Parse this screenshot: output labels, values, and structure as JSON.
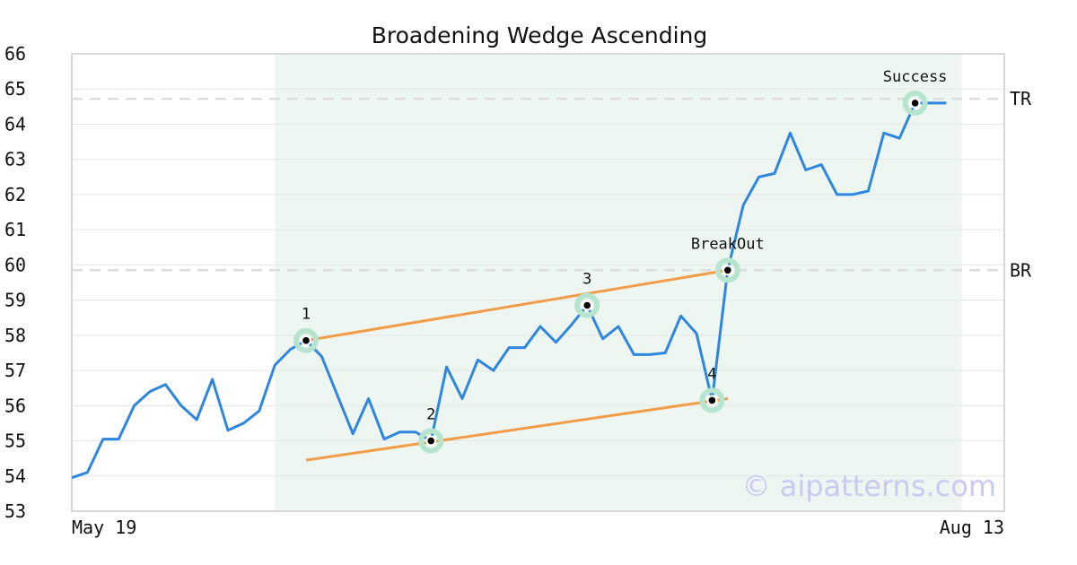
{
  "chart_data": {
    "type": "line",
    "title": "Broadening Wedge Ascending",
    "xlabel": "",
    "ylabel": "",
    "ylim": [
      53,
      66
    ],
    "yticks": [
      53,
      54,
      55,
      56,
      57,
      58,
      59,
      60,
      61,
      62,
      63,
      64,
      65,
      66
    ],
    "x_tick_labels": [
      "May 19",
      "Aug 13"
    ],
    "grid": true,
    "pattern_region": {
      "start_index": 13,
      "end_index": 57,
      "color": "#eef6f2"
    },
    "series": [
      {
        "color": "#2e86de",
        "values": [
          53.95,
          54.1,
          55.05,
          55.05,
          56.0,
          56.4,
          56.6,
          56.0,
          55.6,
          56.75,
          55.3,
          55.5,
          55.85,
          57.15,
          57.6,
          57.85,
          57.4,
          56.3,
          55.2,
          56.2,
          55.05,
          55.25,
          55.25,
          55.0,
          57.1,
          56.2,
          57.3,
          57.0,
          57.65,
          57.65,
          58.25,
          57.8,
          58.3,
          58.85,
          57.9,
          58.25,
          57.45,
          57.45,
          57.5,
          58.55,
          58.05,
          56.15,
          59.85,
          61.7,
          62.5,
          62.6,
          63.75,
          62.7,
          62.85,
          62.0,
          62.0,
          62.1,
          63.75,
          63.6,
          64.6,
          64.6,
          64.6
        ]
      }
    ],
    "trendlines": [
      {
        "color": "#f39c48",
        "from": {
          "index": 15,
          "value": 57.85
        },
        "to": {
          "index": 42,
          "value": 59.85
        }
      },
      {
        "color": "#f39c48",
        "from": {
          "index": 15,
          "value": 54.45
        },
        "to": {
          "index": 42,
          "value": 56.2
        }
      }
    ],
    "levels": [
      {
        "label": "TR",
        "value": 64.72
      },
      {
        "label": "BR",
        "value": 59.85
      }
    ],
    "points": [
      {
        "label": "1",
        "index": 15,
        "value": 57.85
      },
      {
        "label": "2",
        "index": 23,
        "value": 55.0
      },
      {
        "label": "3",
        "index": 33,
        "value": 58.85
      },
      {
        "label": "4",
        "index": 41,
        "value": 56.15
      },
      {
        "label": "BreakOut",
        "index": 42,
        "value": 59.85
      },
      {
        "label": "Success",
        "index": 54,
        "value": 64.6
      }
    ],
    "watermark": "© aipatterns.com"
  }
}
